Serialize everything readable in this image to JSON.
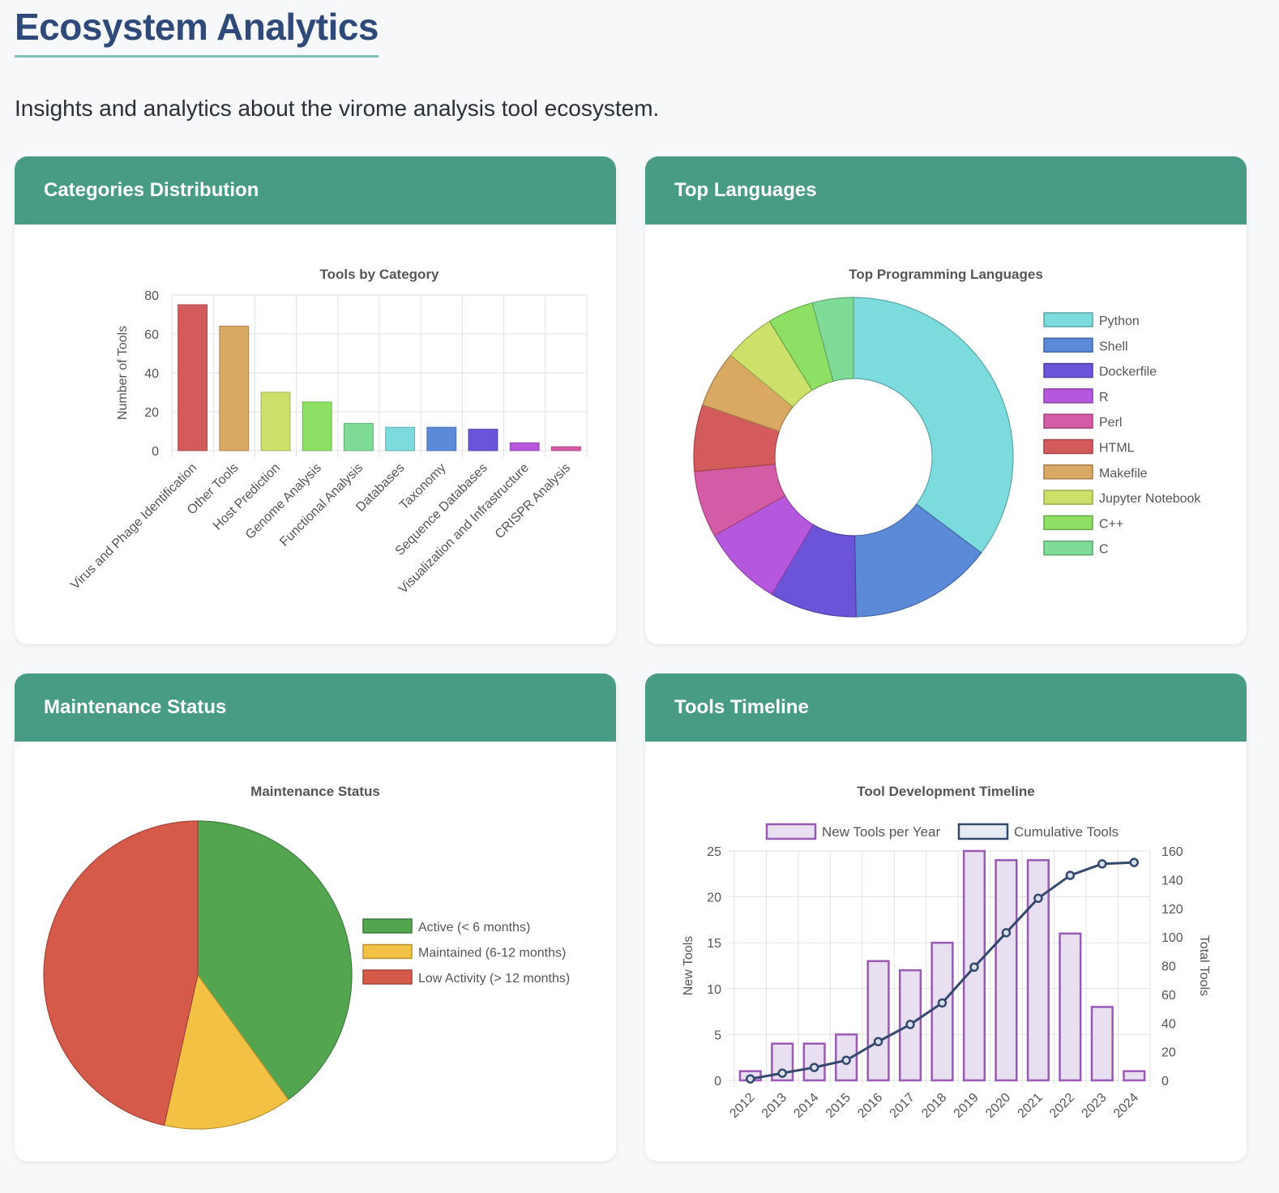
{
  "page": {
    "title": "Ecosystem Analytics",
    "subtitle": "Insights and analytics about the virome analysis tool ecosystem."
  },
  "cards": {
    "categories": {
      "header": "Categories Distribution"
    },
    "languages": {
      "header": "Top Languages"
    },
    "maintenance": {
      "header": "Maintenance Status"
    },
    "timeline": {
      "header": "Tools Timeline"
    }
  },
  "chart_data": [
    {
      "id": "categories",
      "type": "bar",
      "title": "Tools by Category",
      "xlabel": "",
      "ylabel": "Number of Tools",
      "ylim": [
        0,
        80
      ],
      "yticks": [
        0,
        20,
        40,
        60,
        80
      ],
      "grid": true,
      "categories": [
        "Virus and Phage Identification",
        "Other Tools",
        "Host Prediction",
        "Genome Analysis",
        "Functional Analysis",
        "Databases",
        "Taxonomy",
        "Sequence Databases",
        "Visualization and Infrastructure",
        "CRISPR Analysis"
      ],
      "values": [
        75,
        64,
        30,
        25,
        14,
        12,
        12,
        11,
        4,
        2
      ],
      "colors": [
        "#d45b5b",
        "#d9a862",
        "#cde06a",
        "#8de063",
        "#7edc97",
        "#7bdbdd",
        "#5b8ad9",
        "#6c54d9",
        "#b558dd",
        "#d45ba6"
      ]
    },
    {
      "id": "languages",
      "type": "pie",
      "donut": true,
      "title": "Top Programming Languages",
      "legend": "right",
      "labels": [
        "Python",
        "Shell",
        "Dockerfile",
        "R",
        "Perl",
        "HTML",
        "Makefile",
        "Jupyter Notebook",
        "C++",
        "C"
      ],
      "values": [
        34,
        14,
        8.5,
        8,
        6.5,
        6.5,
        5.5,
        5,
        4.5,
        4
      ],
      "colors": [
        "#7bdbdd",
        "#5b8ad9",
        "#6c54d9",
        "#b558dd",
        "#d45ba6",
        "#d45b5b",
        "#d9a862",
        "#cde06a",
        "#8de063",
        "#7edc97"
      ]
    },
    {
      "id": "maintenance",
      "type": "pie",
      "title": "Maintenance Status",
      "legend": "right",
      "labels": [
        "Active (< 6 months)",
        "Maintained (6-12 months)",
        "Low Activity (> 12 months)"
      ],
      "values": [
        40,
        13.5,
        46.5
      ],
      "colors": [
        "#53a550",
        "#f3c244",
        "#d65a4a"
      ]
    },
    {
      "id": "timeline",
      "type": "bar",
      "title": "Tool Development Timeline",
      "legend": "top",
      "grid": true,
      "x": [
        "2012",
        "2013",
        "2014",
        "2015",
        "2016",
        "2017",
        "2018",
        "2019",
        "2020",
        "2021",
        "2022",
        "2023",
        "2024"
      ],
      "ylabel": "New Tools",
      "ylim": [
        0,
        25
      ],
      "yticks": [
        0,
        5,
        10,
        15,
        20,
        25
      ],
      "y2label": "Total Tools",
      "y2lim": [
        0,
        160
      ],
      "y2ticks": [
        0,
        20,
        40,
        60,
        80,
        100,
        120,
        140,
        160
      ],
      "series": [
        {
          "name": "New Tools per Year",
          "type": "bar",
          "axis": "y",
          "values": [
            1,
            4,
            4,
            5,
            13,
            12,
            15,
            25,
            24,
            24,
            16,
            8,
            1
          ],
          "color": "#9b59b6",
          "fill": "#e8dff0"
        },
        {
          "name": "Cumulative Tools",
          "type": "line",
          "axis": "y2",
          "values": [
            1,
            5,
            9,
            14,
            27,
            39,
            54,
            79,
            103,
            127,
            143,
            151,
            152
          ],
          "color": "#34496e"
        }
      ]
    }
  ]
}
